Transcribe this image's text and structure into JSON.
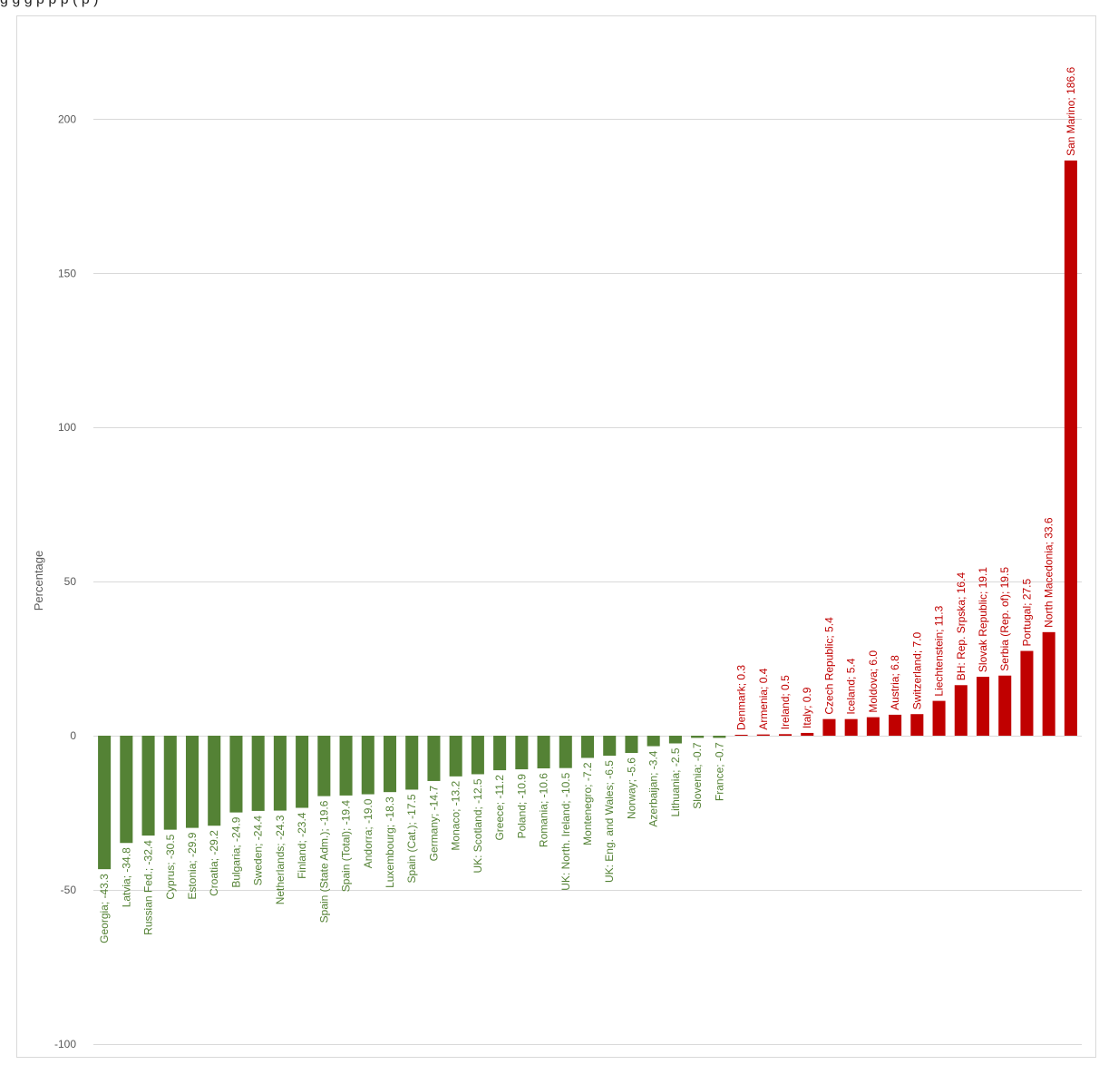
{
  "caption": "g                  g    g       p    p p                 (                      p                     )",
  "chart_data": {
    "type": "bar",
    "ylabel": "Percentage",
    "ylim": [
      -100,
      220
    ],
    "yticks": [
      -100,
      -50,
      0,
      50,
      100,
      150,
      200
    ],
    "grid": true,
    "legend": "none",
    "negative_color": "#548235",
    "positive_color": "#C00000",
    "categories": [
      "Georgia",
      "Latvia",
      "Russian Fed.",
      "Cyprus",
      "Estonia",
      "Croatia",
      "Bulgaria",
      "Sweden",
      "Netherlands",
      "Finland",
      "Spain (State Adm.)",
      "Spain (Total)",
      "Andorra",
      "Luxembourg",
      "Spain (Cat.)",
      "Germany",
      "Monaco",
      "UK: Scotland",
      "Greece",
      "Poland",
      "Romania",
      "UK: North. Ireland",
      "Montenegro",
      "UK: Eng. and Wales",
      "Norway",
      "Azerbaijan",
      "Lithuania",
      "Slovenia",
      "France",
      "Denmark",
      "Armenia",
      "Ireland",
      "Italy",
      "Czech Republic",
      "Iceland",
      "Moldova",
      "Austria",
      "Switzerland",
      "Liechtenstein",
      "BH: Rep. Srpska",
      "Slovak Republic",
      "Serbia (Rep. of)",
      "Portugal",
      "North Macedonia",
      "San Marino"
    ],
    "values": [
      -43.3,
      -34.8,
      -32.4,
      -30.5,
      -29.9,
      -29.2,
      -24.9,
      -24.4,
      -24.3,
      -23.4,
      -19.6,
      -19.4,
      -19.0,
      -18.3,
      -17.5,
      -14.7,
      -13.2,
      -12.5,
      -11.2,
      -10.9,
      -10.6,
      -10.5,
      -7.2,
      -6.5,
      -5.6,
      -3.4,
      -2.5,
      -0.7,
      -0.7,
      0.3,
      0.4,
      0.5,
      0.9,
      5.4,
      5.4,
      6.0,
      6.8,
      7.0,
      11.3,
      16.4,
      19.1,
      19.5,
      27.5,
      33.6,
      186.6
    ],
    "data_labels": [
      "Georgia; -43.3",
      "Latvia; -34.8",
      "Russian Fed.; -32.4",
      "Cyprus; -30.5",
      "Estonia; -29.9",
      "Croatia; -29.2",
      "Bulgaria; -24.9",
      "Sweden; -24.4",
      "Netherlands; -24.3",
      "Finland; -23.4",
      "Spain (State Adm.); -19.6",
      "Spain (Total); -19.4",
      "Andorra; -19.0",
      "Luxembourg; -18.3",
      "Spain (Cat.); -17.5",
      "Germany; -14.7",
      "Monaco; -13.2",
      "UK: Scotland; -12.5",
      "Greece; -11.2",
      "Poland; -10.9",
      "Romania; -10.6",
      "UK: North. Ireland; -10.5",
      "Montenegro; -7.2",
      "UK: Eng. and Wales; -6.5",
      "Norway; -5.6",
      "Azerbaijan; -3.4",
      "Lithuania; -2.5",
      "Slovenia; -0.7",
      "France; -0.7",
      "Denmark; 0.3",
      "Armenia; 0.4",
      "Ireland; 0.5",
      "Italy; 0.9",
      "Czech Republic; 5.4",
      "Iceland; 5.4",
      "Moldova; 6.0",
      "Austria; 6.8",
      "Switzerland; 7.0",
      "Liechtenstein; 11.3",
      "BH: Rep. Srpska; 16.4",
      "Slovak Republic; 19.1",
      "Serbia (Rep. of); 19.5",
      "Portugal; 27.5",
      "North Macedonia; 33.6",
      "San Marino; 186.6"
    ]
  }
}
